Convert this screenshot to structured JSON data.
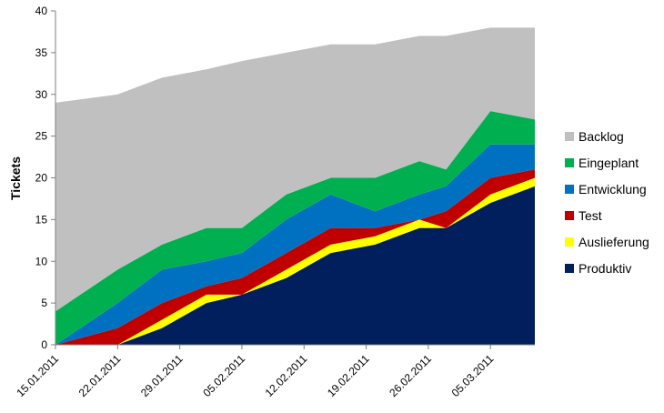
{
  "chart_data": {
    "type": "area",
    "stacked": true,
    "x_dates": [
      "2011-01-15",
      "2011-01-22",
      "2011-01-27",
      "2011-02-01",
      "2011-02-05",
      "2011-02-10",
      "2011-02-15",
      "2011-02-20",
      "2011-02-25",
      "2011-02-28",
      "2011-03-05",
      "2011-03-10"
    ],
    "xticks": [
      "15.01.2011",
      "22.01.2011",
      "29.01.2011",
      "05.02.2011",
      "12.02.2011",
      "19.02.2011",
      "26.02.2011",
      "05.03.2011"
    ],
    "xtick_dates": [
      "2011-01-15",
      "2011-01-22",
      "2011-01-29",
      "2011-02-05",
      "2011-02-12",
      "2011-02-19",
      "2011-02-26",
      "2011-03-05"
    ],
    "ylabel": "Tickets",
    "xlabel": "",
    "ylim": [
      0,
      40
    ],
    "yticks": [
      0,
      5,
      10,
      15,
      20,
      25,
      30,
      35,
      40
    ],
    "grid": false,
    "legend_position": "right",
    "series": [
      {
        "name": "Produktiv",
        "color": "#001f5c",
        "values": [
          0,
          0,
          2,
          5,
          6,
          8,
          11,
          12,
          14,
          14,
          17,
          19
        ]
      },
      {
        "name": "Auslieferung",
        "color": "#ffff00",
        "values": [
          0,
          0,
          1,
          1,
          0,
          1,
          1,
          1,
          1,
          0,
          1,
          1
        ]
      },
      {
        "name": "Test",
        "color": "#c00000",
        "values": [
          0,
          2,
          2,
          1,
          2,
          2,
          2,
          1,
          0,
          2,
          2,
          1
        ]
      },
      {
        "name": "Entwicklung",
        "color": "#0070c0",
        "values": [
          0,
          3,
          4,
          3,
          3,
          4,
          4,
          2,
          3,
          3,
          4,
          3
        ]
      },
      {
        "name": "Eingeplant",
        "color": "#00b050",
        "values": [
          4,
          4,
          3,
          4,
          3,
          3,
          2,
          4,
          4,
          2,
          4,
          3
        ]
      },
      {
        "name": "Backlog",
        "color": "#c0c0c0",
        "values": [
          25,
          21,
          20,
          19,
          20,
          17,
          16,
          16,
          15,
          16,
          10,
          11
        ]
      }
    ]
  }
}
